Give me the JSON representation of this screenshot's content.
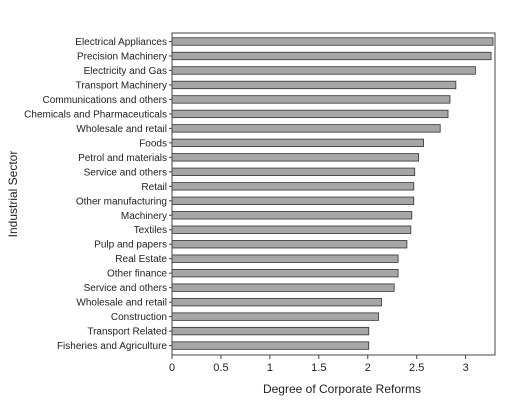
{
  "chart_data": {
    "type": "bar",
    "orientation": "horizontal",
    "title": "",
    "xlabel": "Degree of Corporate Reforms",
    "ylabel": "Industrial Sector",
    "xlim": [
      0,
      3.3
    ],
    "xticks": [
      "0",
      "0.5",
      "1",
      "1.5",
      "2",
      "2.5",
      "3"
    ],
    "grid": false,
    "bar_color": "#a6a6a6",
    "categories": [
      "Electrical Appliances",
      "Precision Machinery",
      "Electricity and Gas",
      "Transport Machinery",
      "Communications and others",
      "Chemicals and Pharmaceuticals",
      "Wholesale and retail",
      "Foods",
      "Petrol and materials",
      "Service and others",
      "Retail",
      "Other manufacturing",
      "Machinery",
      "Textiles",
      "Pulp and papers",
      "Real Estate",
      "Other finance",
      "Service and others",
      "Wholesale and retail",
      "Construction",
      "Transport Related",
      "Fisheries and Agriculture"
    ],
    "values": [
      3.28,
      3.26,
      3.1,
      2.9,
      2.84,
      2.82,
      2.74,
      2.57,
      2.52,
      2.48,
      2.47,
      2.47,
      2.45,
      2.44,
      2.4,
      2.31,
      2.31,
      2.27,
      2.14,
      2.11,
      2.01,
      2.01
    ]
  }
}
